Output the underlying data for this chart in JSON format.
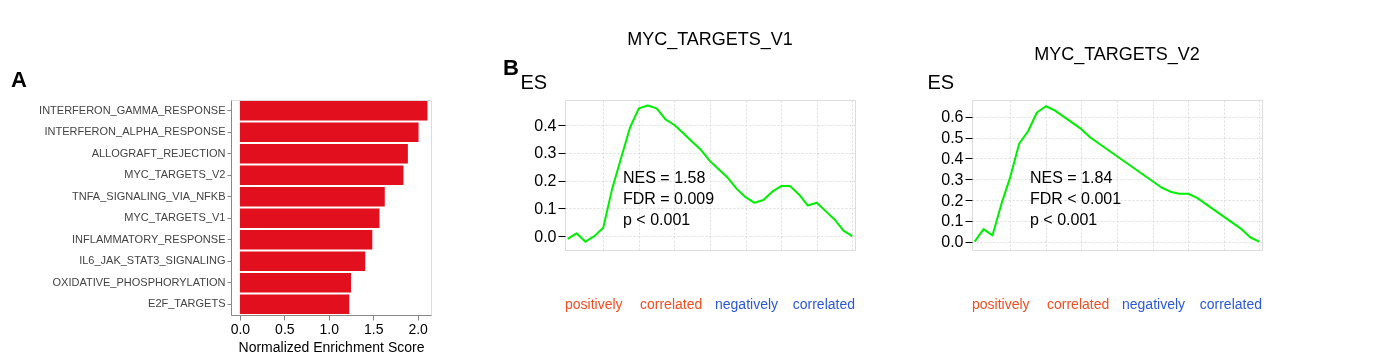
{
  "chart_data": [
    {
      "type": "bar",
      "orientation": "horizontal",
      "xlabel": "Normalized Enrichment Score",
      "annotations": [
        "A"
      ],
      "categories": [
        "INTERFERON_GAMMA_RESPONSE",
        "INTERFERON_ALPHA_RESPONSE",
        "ALLOGRAFT_REJECTION",
        "MYC_TARGETS_V2",
        "TNFA_SIGNALING_VIA_NFKB",
        "MYC_TARGETS_V1",
        "INFLAMMATORY_RESPONSE",
        "IL6_JAK_STAT3_SIGNALING",
        "OXIDATIVE_PHOSPHORYLATION",
        "E2F_TARGETS"
      ],
      "values": [
        2.11,
        2.01,
        1.89,
        1.84,
        1.63,
        1.57,
        1.49,
        1.41,
        1.25,
        1.23
      ],
      "color": "#e2101f",
      "xlim": [
        -0.1,
        2.15
      ],
      "xticks": [
        {
          "value": 0,
          "label": "0.0"
        },
        0.5,
        {
          "value": 1,
          "label": "1.0"
        },
        1.5,
        {
          "value": 2,
          "label": "2.0"
        }
      ],
      "grid": false
    },
    {
      "type": "line",
      "title": "MYC_TARGETS_V1",
      "ylabel": "ES",
      "tick_labels": "y",
      "grid": true,
      "annotations": [
        "B",
        "NES = 1.58",
        "FDR = 0.009",
        "p < 0.001",
        "positively",
        "correlated",
        "negatively",
        "correlated"
      ],
      "categories": [
        null,
        null,
        null,
        null,
        null,
        null,
        null,
        null,
        null,
        null,
        null,
        null,
        null,
        null,
        null,
        null,
        null,
        null,
        null,
        null,
        null,
        null,
        null,
        null,
        null,
        null,
        null,
        null,
        null,
        null,
        null,
        null,
        null
      ],
      "values": [
        -0.01,
        0.01,
        -0.02,
        0.0,
        0.03,
        0.17,
        0.28,
        0.39,
        0.46,
        0.47,
        0.46,
        0.42,
        0.4,
        0.37,
        0.34,
        0.31,
        0.27,
        0.24,
        0.21,
        0.17,
        0.14,
        0.12,
        0.13,
        0.16,
        0.18,
        0.18,
        0.15,
        0.11,
        0.12,
        0.09,
        0.06,
        0.02,
        0.0
      ],
      "color": "#00ee00",
      "ylim": [
        -0.05,
        0.49
      ],
      "yticks": [
        {
          "value": 0,
          "label": "0.0"
        },
        0.1,
        0.2,
        0.3,
        0.4
      ]
    },
    {
      "type": "line",
      "title": "MYC_TARGETS_V2",
      "ylabel": "ES",
      "tick_labels": "y",
      "grid": true,
      "annotations": [
        "NES = 1.84",
        "FDR < 0.001",
        "p < 0.001",
        "positively",
        "correlated",
        "negatively",
        "correlated"
      ],
      "categories": [
        null,
        null,
        null,
        null,
        null,
        null,
        null,
        null,
        null,
        null,
        null,
        null,
        null,
        null,
        null,
        null,
        null,
        null,
        null,
        null,
        null,
        null,
        null,
        null,
        null,
        null,
        null,
        null,
        null,
        null,
        null,
        null,
        null
      ],
      "values": [
        0.0,
        0.06,
        0.03,
        0.18,
        0.31,
        0.47,
        0.53,
        0.62,
        0.65,
        0.63,
        0.6,
        0.57,
        0.54,
        0.5,
        0.47,
        0.44,
        0.41,
        0.38,
        0.35,
        0.32,
        0.29,
        0.26,
        0.24,
        0.23,
        0.23,
        0.21,
        0.18,
        0.15,
        0.12,
        0.09,
        0.06,
        0.02,
        0.0
      ],
      "color": "#00ee00",
      "ylim": [
        -0.04,
        0.68
      ],
      "yticks": [
        {
          "value": 0,
          "label": "0.0"
        },
        0.1,
        0.2,
        0.3,
        0.4,
        0.5,
        0.6
      ]
    }
  ]
}
